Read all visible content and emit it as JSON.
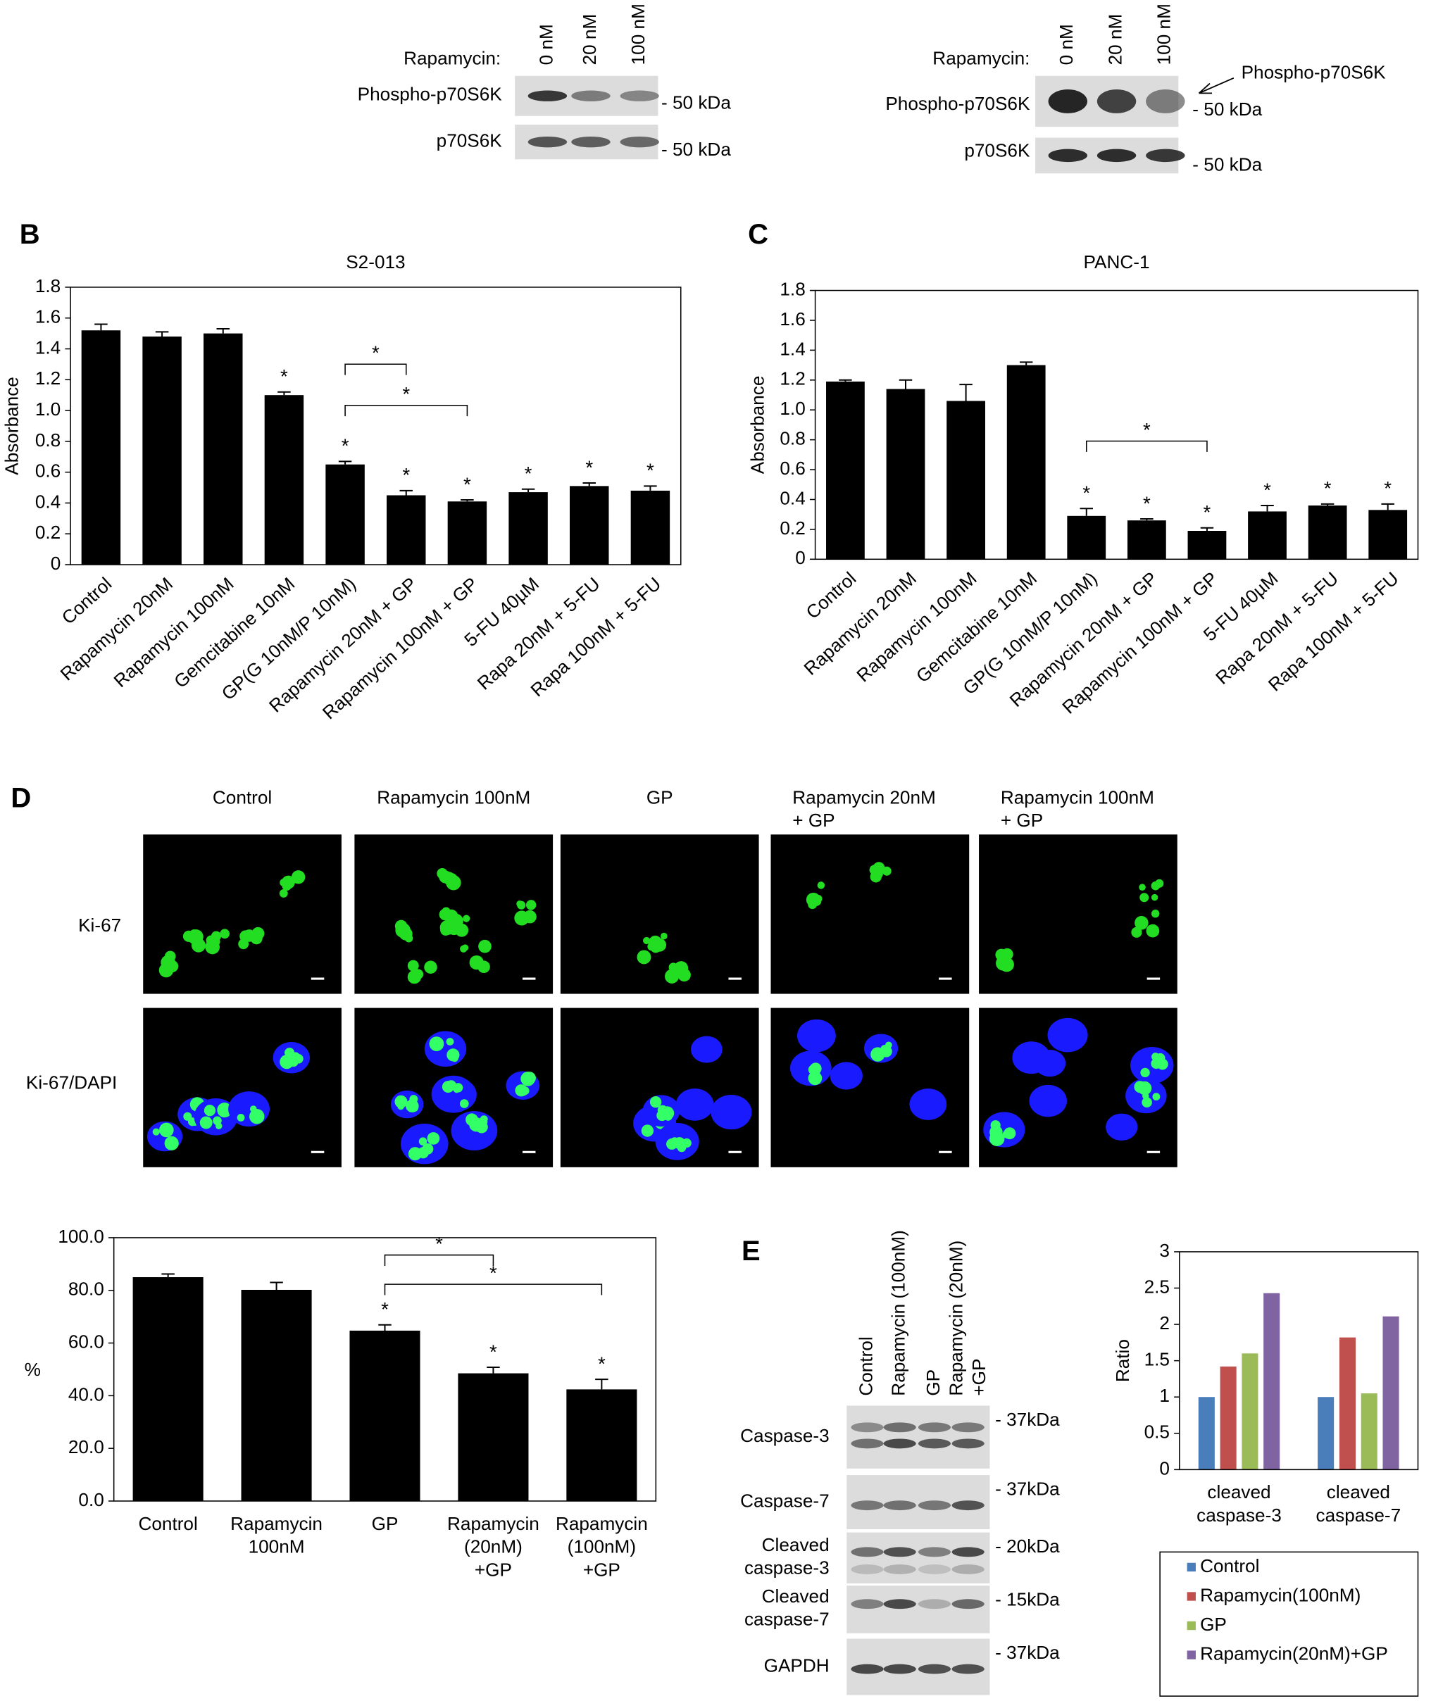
{
  "panel_labels": [
    "B",
    "C",
    "D",
    "E"
  ],
  "blot_a": [
    {
      "lanes_label": "Rapamycin:",
      "lanes": [
        "0 nM",
        "20 nM",
        "100 nM"
      ],
      "rows": [
        {
          "label": "Phospho-p70S6K",
          "marker": "- 50 kDa"
        },
        {
          "label": "p70S6K",
          "marker": "- 50 kDa"
        }
      ]
    },
    {
      "lanes_label": "Rapamycin:",
      "lanes": [
        "0 nM",
        "20 nM",
        "100 nM"
      ],
      "arrow_label": "Phospho-p70S6K",
      "rows": [
        {
          "label": "Phospho-p70S6K",
          "marker": "- 50 kDa"
        },
        {
          "label": "p70S6K",
          "marker": "- 50 kDa"
        }
      ]
    }
  ],
  "microscopy": {
    "columns": [
      "Control",
      "Rapamycin  100nM",
      "GP",
      "Rapamycin 20nM\n+ GP",
      "Rapamycin 100nM\n+ GP"
    ],
    "rows": [
      "Ki-67",
      "Ki-67/DAPI"
    ]
  },
  "blot_e": {
    "lanes": [
      "Control",
      "Rapamycin (100nM)",
      "GP",
      "Rapamycin (20nM)\n+GP"
    ],
    "rows": [
      {
        "label": "Caspase-3",
        "marker": "- 37kDa"
      },
      {
        "label": "Caspase-7",
        "marker": "- 37kDa"
      },
      {
        "label": "Cleaved\ncaspase-3",
        "marker": "- 20kDa"
      },
      {
        "label": "Cleaved\ncaspase-7",
        "marker": "- 15kDa"
      },
      {
        "label": "GAPDH",
        "marker": "- 37kDa"
      }
    ]
  },
  "chart_data": [
    {
      "type": "bar",
      "title": "S2-013",
      "ylabel": "Absorbance",
      "color": "#000000",
      "categories": [
        "Control",
        "Rapamycin 20nM",
        "Rapamycin 100nM",
        "Gemcitabine 10nM",
        "GP(G 10nM/P 10nM)",
        "Rapamycin 20nM + GP",
        "Rapamycin 100nM + GP",
        "5-FU  40µM",
        "Rapa 20nM + 5-FU",
        "Rapa 100nM + 5-FU"
      ],
      "values": [
        1.52,
        1.48,
        1.5,
        1.1,
        0.65,
        0.45,
        0.41,
        0.47,
        0.51,
        0.48
      ],
      "errors": [
        0.04,
        0.03,
        0.03,
        0.02,
        0.02,
        0.03,
        0.01,
        0.02,
        0.02,
        0.03
      ],
      "significant": [
        false,
        false,
        false,
        true,
        true,
        true,
        true,
        true,
        true,
        true
      ],
      "significance_label": "*",
      "brackets": [
        [
          4,
          5
        ],
        [
          4,
          6
        ]
      ],
      "ylim": [
        0,
        1.8
      ],
      "yticks": [
        0,
        0.2,
        0.4,
        0.6,
        0.8,
        {
          "value": 1,
          "label": "1.0"
        },
        1.2,
        1.4,
        1.6,
        1.8
      ]
    },
    {
      "type": "bar",
      "title": "PANC-1",
      "ylabel": "Absorbance",
      "color": "#000000",
      "categories": [
        "Control",
        "Rapamycin 20nM",
        "Rapamycin 100nM",
        "Gemcitabine 10nM",
        "GP(G 10nM/P 10nM)",
        "Rapamycin 20nM + GP",
        "Rapamycin 100nM + GP",
        "5-FU  40µM",
        "Rapa 20nM + 5-FU",
        "Rapa 100nM + 5-FU"
      ],
      "values": [
        1.19,
        1.14,
        1.06,
        1.3,
        0.29,
        0.26,
        0.19,
        0.32,
        0.36,
        0.33
      ],
      "errors": [
        0.01,
        0.06,
        0.11,
        0.02,
        0.05,
        0.01,
        0.02,
        0.04,
        0.01,
        0.04
      ],
      "significant": [
        false,
        false,
        false,
        false,
        true,
        true,
        true,
        true,
        true,
        true
      ],
      "significance_label": "*",
      "brackets": [
        [
          4,
          6
        ]
      ],
      "ylim": [
        0,
        1.8
      ],
      "yticks": [
        0,
        0.2,
        0.4,
        0.6,
        0.8,
        {
          "value": 1,
          "label": "1.0"
        },
        1.2,
        1.4,
        1.6,
        1.8
      ]
    },
    {
      "type": "bar",
      "ylabel": "%",
      "color": "#000000",
      "categories": [
        "Control",
        "Rapamycin\n100nM",
        "GP",
        "Rapamycin\n(20nM)\n+GP",
        "Rapamycin\n(100nM)\n+GP"
      ],
      "values": [
        85.0,
        80.2,
        64.7,
        48.5,
        42.4
      ],
      "errors": [
        1.2,
        2.8,
        2.2,
        2.3,
        3.8
      ],
      "significant": [
        false,
        false,
        true,
        true,
        true
      ],
      "significance_label": "*",
      "brackets": [
        [
          2,
          3
        ],
        [
          2,
          4
        ]
      ],
      "ylim": [
        0,
        100
      ],
      "yticks": [
        {
          "value": 0,
          "label": "0.0"
        },
        {
          "value": 20,
          "label": "20.0"
        },
        {
          "value": 40,
          "label": "40.0"
        },
        {
          "value": 60,
          "label": "60.0"
        },
        {
          "value": 80,
          "label": "80.0"
        },
        {
          "value": 100,
          "label": "100.0"
        }
      ]
    },
    {
      "type": "grouped_bar",
      "ylabel": "Ratio",
      "legend": "below",
      "categories": [
        "cleaved\ncaspase-3",
        "cleaved\ncaspase-7"
      ],
      "series": [
        {
          "name": "Control",
          "color": "#4a7ebb",
          "values": [
            1,
            1
          ]
        },
        {
          "name": "Rapamycin(100nM)",
          "color": "#c0504d",
          "values": [
            1.42,
            1.82
          ]
        },
        {
          "name": "GP",
          "color": "#9bbb59",
          "values": [
            1.6,
            1.05
          ]
        },
        {
          "name": "Rapamycin(20nM)+GP",
          "color": "#8064a2",
          "values": [
            2.43,
            2.11
          ]
        }
      ],
      "ylim": [
        0,
        3
      ],
      "yticks": [
        0,
        0.5,
        1,
        1.5,
        2,
        2.5,
        3
      ]
    }
  ]
}
